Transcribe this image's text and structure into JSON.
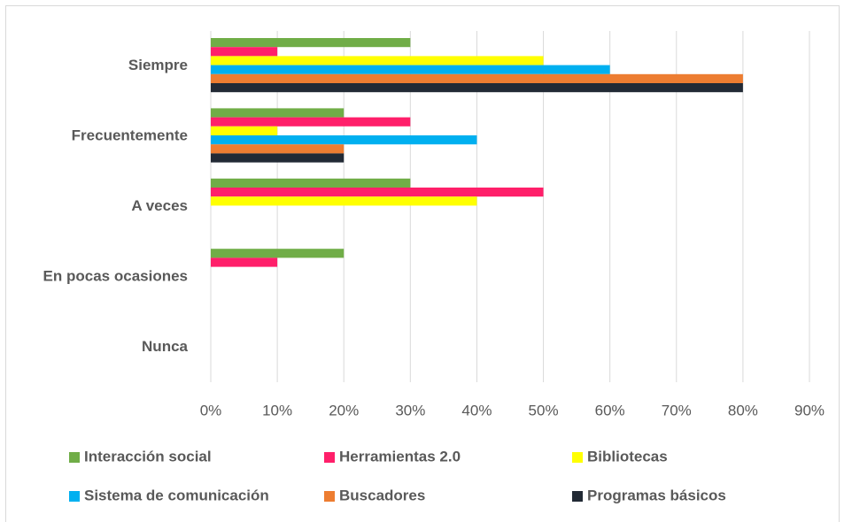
{
  "chart_data": {
    "type": "bar",
    "orientation": "horizontal",
    "categories": [
      "Siempre",
      "Frecuentemente",
      "A veces",
      "En pocas ocasiones",
      "Nunca"
    ],
    "series": [
      {
        "name": "Interacción social",
        "color": "#70ad47",
        "values": [
          30,
          20,
          30,
          20,
          0
        ]
      },
      {
        "name": "Herramientas 2.0",
        "color": "#ff1f6a",
        "values": [
          10,
          30,
          50,
          10,
          0
        ]
      },
      {
        "name": "Bibliotecas",
        "color": "#ffff00",
        "values": [
          50,
          10,
          40,
          0,
          0
        ]
      },
      {
        "name": "Sistema de comunicación",
        "color": "#00b0f0",
        "values": [
          60,
          40,
          0,
          0,
          0
        ]
      },
      {
        "name": "Buscadores",
        "color": "#ed7d31",
        "values": [
          80,
          20,
          0,
          0,
          0
        ]
      },
      {
        "name": "Programas básicos",
        "color": "#222a35",
        "values": [
          80,
          20,
          0,
          0,
          0
        ]
      }
    ],
    "xlim": [
      0,
      90
    ],
    "xticks": [
      {
        "value": 0,
        "label": "0%"
      },
      {
        "value": 10,
        "label": "10%"
      },
      {
        "value": 20,
        "label": "20%"
      },
      {
        "value": 30,
        "label": "30%"
      },
      {
        "value": 40,
        "label": "40%"
      },
      {
        "value": 50,
        "label": "50%"
      },
      {
        "value": 60,
        "label": "60%"
      },
      {
        "value": 70,
        "label": "70%"
      },
      {
        "value": 80,
        "label": "80%"
      },
      {
        "value": 90,
        "label": "90%"
      }
    ],
    "grid": true,
    "legend": "bottom"
  }
}
